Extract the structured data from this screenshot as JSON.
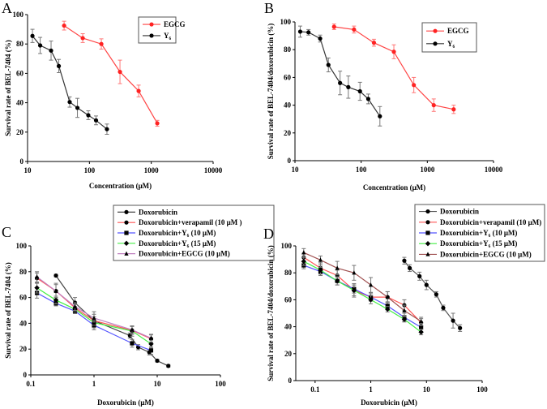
{
  "chart_data": [
    {
      "panel": "A",
      "type": "line",
      "x_scale": "log",
      "xlabel": "Concentration (μM)",
      "ylabel": "Survival rate of BEL-7404 (%)",
      "xlim": [
        10,
        10000
      ],
      "ylim": [
        0,
        100
      ],
      "xticks": [
        "10",
        "100",
        "1000",
        "10000"
      ],
      "xtick_values": [
        10,
        100,
        1000,
        10000
      ],
      "yticks": [
        "0",
        "20",
        "40",
        "60",
        "80",
        "100"
      ],
      "ytick_values": [
        0,
        20,
        40,
        60,
        80,
        100
      ],
      "grid": false,
      "legend": "top-right",
      "series": [
        {
          "name": "EGCG",
          "color": "#ff4444",
          "marker": "circle",
          "x": [
            39,
            78,
            156,
            312,
            625,
            1250
          ],
          "y": [
            92.5,
            84,
            80,
            61,
            48,
            26
          ],
          "err": [
            3,
            3,
            3.5,
            8,
            4,
            2
          ]
        },
        {
          "name": "Y₆",
          "color": "#333333",
          "marker": "circle",
          "x": [
            12,
            16,
            24,
            32,
            48,
            64,
            96,
            128,
            192
          ],
          "y": [
            85.5,
            79,
            75.5,
            65,
            40.5,
            36.5,
            31.5,
            28,
            22
          ],
          "err": [
            4.5,
            5.5,
            6.5,
            4.5,
            3.5,
            6.5,
            3,
            3,
            3.5
          ]
        }
      ]
    },
    {
      "panel": "B",
      "type": "line",
      "x_scale": "log",
      "xlabel": "Concentration (μM)",
      "ylabel": "Survival rate of BEL-7404/doxorubicin (%)",
      "xlim": [
        10,
        10000
      ],
      "ylim": [
        0,
        100
      ],
      "xticks": [
        "10",
        "100",
        "1000",
        "10000"
      ],
      "xtick_values": [
        10,
        100,
        1000,
        10000
      ],
      "yticks": [
        "0",
        "20",
        "40",
        "60",
        "80",
        "100"
      ],
      "ytick_values": [
        0,
        20,
        40,
        60,
        80,
        100
      ],
      "grid": false,
      "legend": "top-right",
      "series": [
        {
          "name": "EGCG",
          "color": "#ff4444",
          "marker": "circle",
          "x": [
            39,
            78,
            156,
            312,
            625,
            1250,
            2500
          ],
          "y": [
            96.5,
            94.5,
            85,
            78.5,
            54.5,
            40,
            37
          ],
          "err": [
            2,
            2.5,
            2.5,
            5,
            5.5,
            4.5,
            3
          ]
        },
        {
          "name": "Y₆",
          "color": "#333333",
          "marker": "circle",
          "x": [
            12,
            16,
            24,
            32,
            48,
            64,
            96,
            128,
            192
          ],
          "y": [
            93,
            92.5,
            88,
            69,
            56,
            53,
            50,
            44.5,
            32
          ],
          "err": [
            4,
            2,
            2.5,
            5,
            8.5,
            8,
            6.5,
            3.5,
            7
          ]
        }
      ]
    },
    {
      "panel": "C",
      "type": "line",
      "x_scale": "log",
      "xlabel": "Doxorubicin (μM)",
      "ylabel": "Survival rate of BEL-7404 (%)",
      "xlim": [
        0.1,
        100
      ],
      "ylim": [
        0,
        100
      ],
      "xticks": [
        "0.1",
        "1",
        "10",
        "100"
      ],
      "xtick_values": [
        0.1,
        1,
        10,
        100
      ],
      "yticks": [
        "0",
        "20",
        "40",
        "60",
        "80",
        "100"
      ],
      "ytick_values": [
        0,
        20,
        40,
        60,
        80,
        100
      ],
      "grid": false,
      "legend": "top-right",
      "series": [
        {
          "name": "Doxorubicin",
          "color": "#444444",
          "marker": "circle",
          "x": [
            0.25,
            0.5,
            1,
            3.7,
            5,
            7.5,
            10,
            15
          ],
          "y": [
            77,
            56,
            42,
            30.5,
            21.5,
            17.5,
            11,
            7
          ],
          "err": [
            1,
            4,
            7,
            2,
            2,
            2,
            1,
            1
          ]
        },
        {
          "name": "Doxorubicin+verapamil (10 μM )",
          "color": "#ff5555",
          "marker": "circle",
          "x": [
            0.125,
            0.25,
            0.5,
            1,
            4,
            8
          ],
          "y": [
            75,
            65,
            52,
            42,
            34.5,
            28
          ],
          "err": [
            4,
            6,
            3,
            3,
            3,
            3
          ]
        },
        {
          "name": "Doxorubicin+Y₆ (10 μM)",
          "color": "#5555ff",
          "marker": "square",
          "x": [
            0.125,
            0.25,
            0.5,
            1,
            4,
            8
          ],
          "y": [
            63.5,
            55.5,
            49.5,
            38.5,
            24.5,
            19
          ],
          "err": [
            4,
            2,
            2,
            2,
            3,
            3
          ]
        },
        {
          "name": "Doxorubicin+Y₆ (15 μM)",
          "color": "#44ee44",
          "marker": "diamond",
          "x": [
            0.125,
            0.25,
            0.5,
            1,
            4,
            8
          ],
          "y": [
            67.5,
            58,
            51,
            40.5,
            34,
            24
          ],
          "err": [
            4,
            3,
            2,
            2,
            4,
            3
          ]
        },
        {
          "name": "Doxorubicin+EGCG (10 μM)",
          "color": "#c080c0",
          "marker": "triangle",
          "x": [
            0.125,
            0.25,
            0.5,
            1,
            4,
            8
          ],
          "y": [
            76,
            65,
            53,
            44,
            35,
            28.5
          ],
          "err": [
            4,
            5,
            3,
            3,
            3,
            3
          ]
        }
      ]
    },
    {
      "panel": "D",
      "type": "line",
      "x_scale": "log",
      "xlabel": "Doxorubicin (μM)",
      "ylabel": "Survival rate of BEL-7404/doxorubicin (%)",
      "xlim": [
        0.045,
        100
      ],
      "ylim": [
        0,
        100
      ],
      "xticks": [
        "0.1",
        "1",
        "10",
        "100"
      ],
      "xtick_values": [
        0.1,
        1,
        10,
        100
      ],
      "yticks": [
        "0",
        "20",
        "40",
        "60",
        "80",
        "100"
      ],
      "ytick_values": [
        0,
        20,
        40,
        60,
        80,
        100
      ],
      "grid": false,
      "legend": "top-right",
      "series": [
        {
          "name": "Doxorubicin",
          "color": "#555555",
          "marker": "circle",
          "x": [
            4,
            5,
            7.5,
            10,
            15,
            20,
            30,
            40
          ],
          "y": [
            89,
            83.5,
            77.5,
            71,
            64,
            54,
            44.5,
            39
          ],
          "err": [
            2.5,
            2.5,
            3,
            3.5,
            2,
            2,
            5.5,
            2.5
          ]
        },
        {
          "name": "Doxorubicin+verapamil (10 μM)",
          "color": "#ff5555",
          "marker": "circle",
          "x": [
            0.0625,
            0.125,
            0.25,
            0.5,
            1,
            2,
            4,
            8
          ],
          "y": [
            91.5,
            83.5,
            78,
            67,
            62,
            62,
            56,
            43
          ],
          "err": [
            3,
            4,
            4,
            4,
            3,
            4,
            4,
            3
          ]
        },
        {
          "name": "Doxorubicin+Y₆ (10 μM)",
          "color": "#5555ff",
          "marker": "square",
          "x": [
            0.0625,
            0.125,
            0.25,
            0.5,
            1,
            2,
            4,
            8
          ],
          "y": [
            85.5,
            81,
            74,
            68,
            62,
            55.5,
            47,
            39.5
          ],
          "err": [
            2.5,
            3,
            3,
            3,
            3,
            3,
            3,
            3
          ]
        },
        {
          "name": "Doxorubicin+Y₆ (15 μM)",
          "color": "#44ee44",
          "marker": "diamond",
          "x": [
            0.0625,
            0.125,
            0.25,
            0.5,
            1,
            2,
            4,
            8
          ],
          "y": [
            88.5,
            82,
            74,
            67,
            60,
            53,
            45.5,
            36
          ],
          "err": [
            3,
            3,
            3,
            5,
            3,
            2,
            2,
            2
          ]
        },
        {
          "name": "Doxorubicin+EGCG (10 μM)",
          "color": "#a05050",
          "marker": "triangle",
          "x": [
            0.0625,
            0.125,
            0.25,
            0.5,
            1,
            2,
            4,
            8
          ],
          "y": [
            95,
            89.5,
            83.5,
            80,
            71,
            62,
            52,
            44
          ],
          "err": [
            3,
            3,
            5,
            5.5,
            5.5,
            4,
            4,
            3
          ]
        }
      ]
    }
  ]
}
